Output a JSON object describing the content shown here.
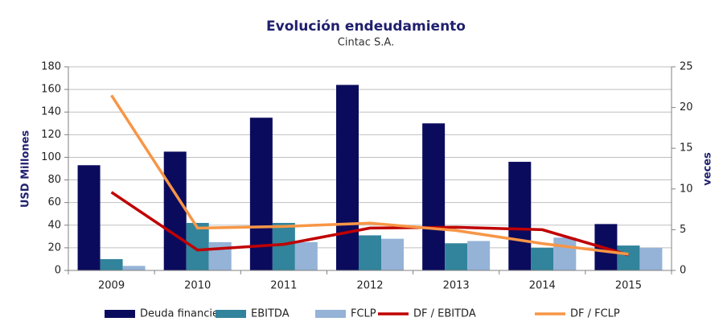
{
  "chart_data": {
    "type": "bar",
    "title": "Evolución endeudamiento",
    "subtitle": "Cintac S.A.",
    "y_label": "USD Millones",
    "y2_label": "veces",
    "categories": [
      "2009",
      "2010",
      "2011",
      "2012",
      "2013",
      "2014",
      "2015"
    ],
    "series": [
      {
        "name": "Deuda financiera",
        "type": "bar",
        "color": "#0b0b5e",
        "values": [
          93,
          105,
          135,
          164,
          130,
          96,
          41
        ]
      },
      {
        "name": "EBITDA",
        "type": "bar",
        "color": "#31849b",
        "values": [
          10,
          42,
          42,
          31,
          24,
          20,
          22
        ]
      },
      {
        "name": "FCLP",
        "type": "bar",
        "color": "#95b3d7",
        "values": [
          4,
          25,
          25,
          28,
          26,
          29,
          20
        ]
      },
      {
        "name": "DF / EBITDA",
        "type": "line",
        "axis": "y2",
        "color": "#c00000",
        "values": [
          9.6,
          2.5,
          3.2,
          5.2,
          5.3,
          5.0,
          1.9
        ]
      },
      {
        "name": "DF / FCLP",
        "type": "line",
        "axis": "y2",
        "color": "#f79646",
        "values": [
          21.5,
          5.2,
          5.4,
          5.8,
          4.9,
          3.3,
          2.0
        ]
      }
    ],
    "ylim": [
      0,
      180
    ],
    "yticks": [
      0,
      20,
      40,
      60,
      80,
      100,
      120,
      140,
      160,
      180
    ],
    "y2lim": [
      0,
      25
    ],
    "y2ticks": [
      0,
      5,
      10,
      15,
      20,
      25
    ],
    "grid": true,
    "legend": "bottom"
  }
}
